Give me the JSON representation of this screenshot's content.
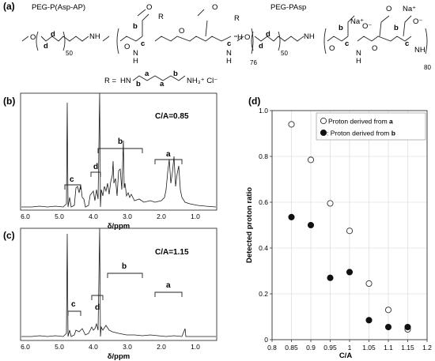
{
  "panels": {
    "a": {
      "label": "(a)",
      "polymer1_name": "PEG-P(Asp-AP)",
      "polymer2_name": "PEG-PAsp",
      "peg_repeat": "50",
      "p1_repeat": "76",
      "p2_repeat": "80",
      "r_def": "R =",
      "r_tail": "NH₃⁺ Cl⁻",
      "atoms": {
        "o": "O",
        "nh": "NH",
        "hn": "HN",
        "n": "N",
        "h": "H",
        "r": "R",
        "na": "Na⁺",
        "ominus": "O⁻"
      },
      "peak_letters": {
        "a": "a",
        "b": "b",
        "c": "c",
        "d": "d"
      }
    },
    "b": {
      "label": "(b)",
      "ratio": "C/A=0.85",
      "xlabel": "δ/ppm",
      "xticks": [
        "6.0",
        "5.0",
        "4.0",
        "3.0",
        "2.0",
        "1.0"
      ],
      "peaks": [
        "c",
        "d",
        "b",
        "a"
      ]
    },
    "c": {
      "label": "(c)",
      "ratio": "C/A=1.15",
      "xlabel": "δ/ppm",
      "xticks": [
        "6.0",
        "5.0",
        "4.0",
        "3.0",
        "2.0",
        "1.0"
      ],
      "peaks": [
        "c",
        "d",
        "b",
        "a"
      ]
    },
    "d": {
      "label": "(d)"
    }
  },
  "chart_data": {
    "type": "scatter",
    "title": "",
    "xlabel": "C/A",
    "ylabel": "Detected proton ratio",
    "xlim": [
      0.8,
      1.2
    ],
    "ylim": [
      0,
      1.0
    ],
    "xticks": [
      "0.8",
      "0.85",
      "0.9",
      "0.95",
      "1",
      "1.05",
      "1.1",
      "1.15",
      "1.2"
    ],
    "yticks": [
      "0",
      "0.2",
      "0.4",
      "0.6",
      "0.8",
      "1.0"
    ],
    "grid": true,
    "legend_position": "top-right",
    "series": [
      {
        "name": "Proton derived from a",
        "legend_prefix": "Proton derived from ",
        "legend_key": "a",
        "marker": "open-circle",
        "x": [
          0.85,
          0.9,
          0.95,
          1.0,
          1.05,
          1.1,
          1.15
        ],
        "y": [
          0.94,
          0.785,
          0.595,
          0.475,
          0.245,
          0.13,
          0.045
        ]
      },
      {
        "name": ": Proton derived from b",
        "legend_prefix": ": Proton derived from ",
        "legend_key": "b",
        "marker": "filled-circle",
        "x": [
          0.85,
          0.9,
          0.95,
          1.0,
          1.05,
          1.1,
          1.15
        ],
        "y": [
          0.535,
          0.5,
          0.27,
          0.295,
          0.085,
          0.055,
          0.055
        ]
      }
    ]
  }
}
